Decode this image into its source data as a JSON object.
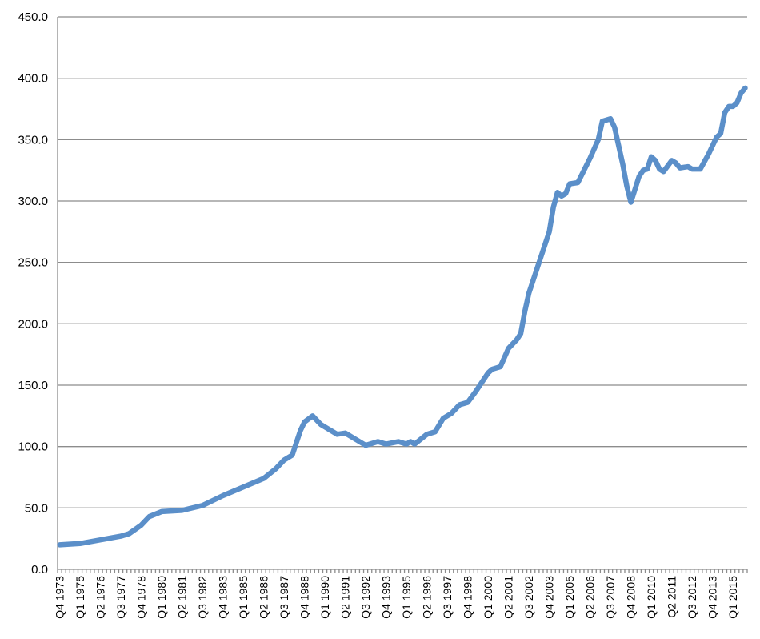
{
  "chart_data": {
    "type": "line",
    "title": "",
    "xlabel": "",
    "ylabel": "",
    "ylim": [
      0,
      450
    ],
    "y_ticks": [
      "0.0",
      "50.0",
      "100.0",
      "150.0",
      "200.0",
      "250.0",
      "300.0",
      "350.0",
      "400.0",
      "450.0"
    ],
    "grid": true,
    "legend": "none",
    "x_start": "Q4 1973",
    "x_end": "Q4 2015",
    "x_tick_labels": [
      "Q4 1973",
      "Q1 1975",
      "Q2 1976",
      "Q3 1977",
      "Q4 1978",
      "Q1 1980",
      "Q2 1981",
      "Q3 1982",
      "Q4 1983",
      "Q1 1985",
      "Q2 1986",
      "Q3 1987",
      "Q4 1988",
      "Q1 1990",
      "Q2 1991",
      "Q3 1992",
      "Q4 1993",
      "Q1 1995",
      "Q2 1996",
      "Q3 1997",
      "Q4 1998",
      "Q1 2000",
      "Q2 2001",
      "Q3 2002",
      "Q4 2003",
      "Q1 2005",
      "Q2 2006",
      "Q3 2007",
      "Q4 2008",
      "Q1 2010",
      "Q2 2011",
      "Q3 2012",
      "Q4 2013",
      "Q1 2015"
    ],
    "series_color": "#5b8fc9",
    "series": [
      {
        "points": [
          [
            "Q4 1973",
            20
          ],
          [
            "Q1 1975",
            21
          ],
          [
            "Q2 1976",
            24
          ],
          [
            "Q3 1977",
            27
          ],
          [
            "Q1 1978",
            29
          ],
          [
            "Q4 1978",
            36
          ],
          [
            "Q2 1979",
            43
          ],
          [
            "Q1 1980",
            47
          ],
          [
            "Q2 1981",
            48
          ],
          [
            "Q3 1982",
            52
          ],
          [
            "Q4 1983",
            60
          ],
          [
            "Q1 1985",
            67
          ],
          [
            "Q2 1986",
            74
          ],
          [
            "Q1 1987",
            82
          ],
          [
            "Q3 1987",
            89
          ],
          [
            "Q1 1988",
            93
          ],
          [
            "Q3 1988",
            113
          ],
          [
            "Q4 1988",
            120
          ],
          [
            "Q2 1989",
            125
          ],
          [
            "Q4 1989",
            118
          ],
          [
            "Q1 1990",
            116
          ],
          [
            "Q4 1990",
            110
          ],
          [
            "Q2 1991",
            111
          ],
          [
            "Q1 1992",
            105
          ],
          [
            "Q3 1992",
            101
          ],
          [
            "Q2 1993",
            104
          ],
          [
            "Q4 1993",
            102
          ],
          [
            "Q3 1994",
            104
          ],
          [
            "Q1 1995",
            102
          ],
          [
            "Q2 1995",
            104
          ],
          [
            "Q3 1995",
            102
          ],
          [
            "Q2 1996",
            110
          ],
          [
            "Q4 1996",
            112
          ],
          [
            "Q2 1997",
            123
          ],
          [
            "Q4 1997",
            127
          ],
          [
            "Q2 1998",
            134
          ],
          [
            "Q4 1998",
            136
          ],
          [
            "Q2 1999",
            145
          ],
          [
            "Q1 2000",
            160
          ],
          [
            "Q2 2000",
            163
          ],
          [
            "Q4 2000",
            165
          ],
          [
            "Q2 2001",
            180
          ],
          [
            "Q4 2001",
            187
          ],
          [
            "Q1 2002",
            192
          ],
          [
            "Q2 2002",
            210
          ],
          [
            "Q3 2002",
            225
          ],
          [
            "Q4 2002",
            235
          ],
          [
            "Q2 2003",
            255
          ],
          [
            "Q4 2003",
            275
          ],
          [
            "Q1 2004",
            295
          ],
          [
            "Q2 2004",
            307
          ],
          [
            "Q3 2004",
            304
          ],
          [
            "Q4 2004",
            306
          ],
          [
            "Q1 2005",
            314
          ],
          [
            "Q3 2005",
            315
          ],
          [
            "Q2 2006",
            335
          ],
          [
            "Q4 2006",
            350
          ],
          [
            "Q1 2007",
            365
          ],
          [
            "Q3 2007",
            367
          ],
          [
            "Q4 2007",
            360
          ],
          [
            "Q2 2008",
            330
          ],
          [
            "Q3 2008",
            312
          ],
          [
            "Q4 2008",
            299
          ],
          [
            "Q2 2009",
            320
          ],
          [
            "Q3 2009",
            325
          ],
          [
            "Q4 2009",
            326
          ],
          [
            "Q1 2010",
            336
          ],
          [
            "Q2 2010",
            333
          ],
          [
            "Q3 2010",
            326
          ],
          [
            "Q4 2010",
            324
          ],
          [
            "Q2 2011",
            333
          ],
          [
            "Q3 2011",
            331
          ],
          [
            "Q4 2011",
            327
          ],
          [
            "Q2 2012",
            328
          ],
          [
            "Q3 2012",
            326
          ],
          [
            "Q1 2013",
            326
          ],
          [
            "Q3 2013",
            338
          ],
          [
            "Q1 2014",
            352
          ],
          [
            "Q2 2014",
            355
          ],
          [
            "Q3 2014",
            372
          ],
          [
            "Q4 2014",
            377
          ],
          [
            "Q1 2015",
            377
          ],
          [
            "Q2 2015",
            380
          ],
          [
            "Q3 2015",
            388
          ],
          [
            "Q4 2015",
            392
          ]
        ]
      }
    ]
  }
}
